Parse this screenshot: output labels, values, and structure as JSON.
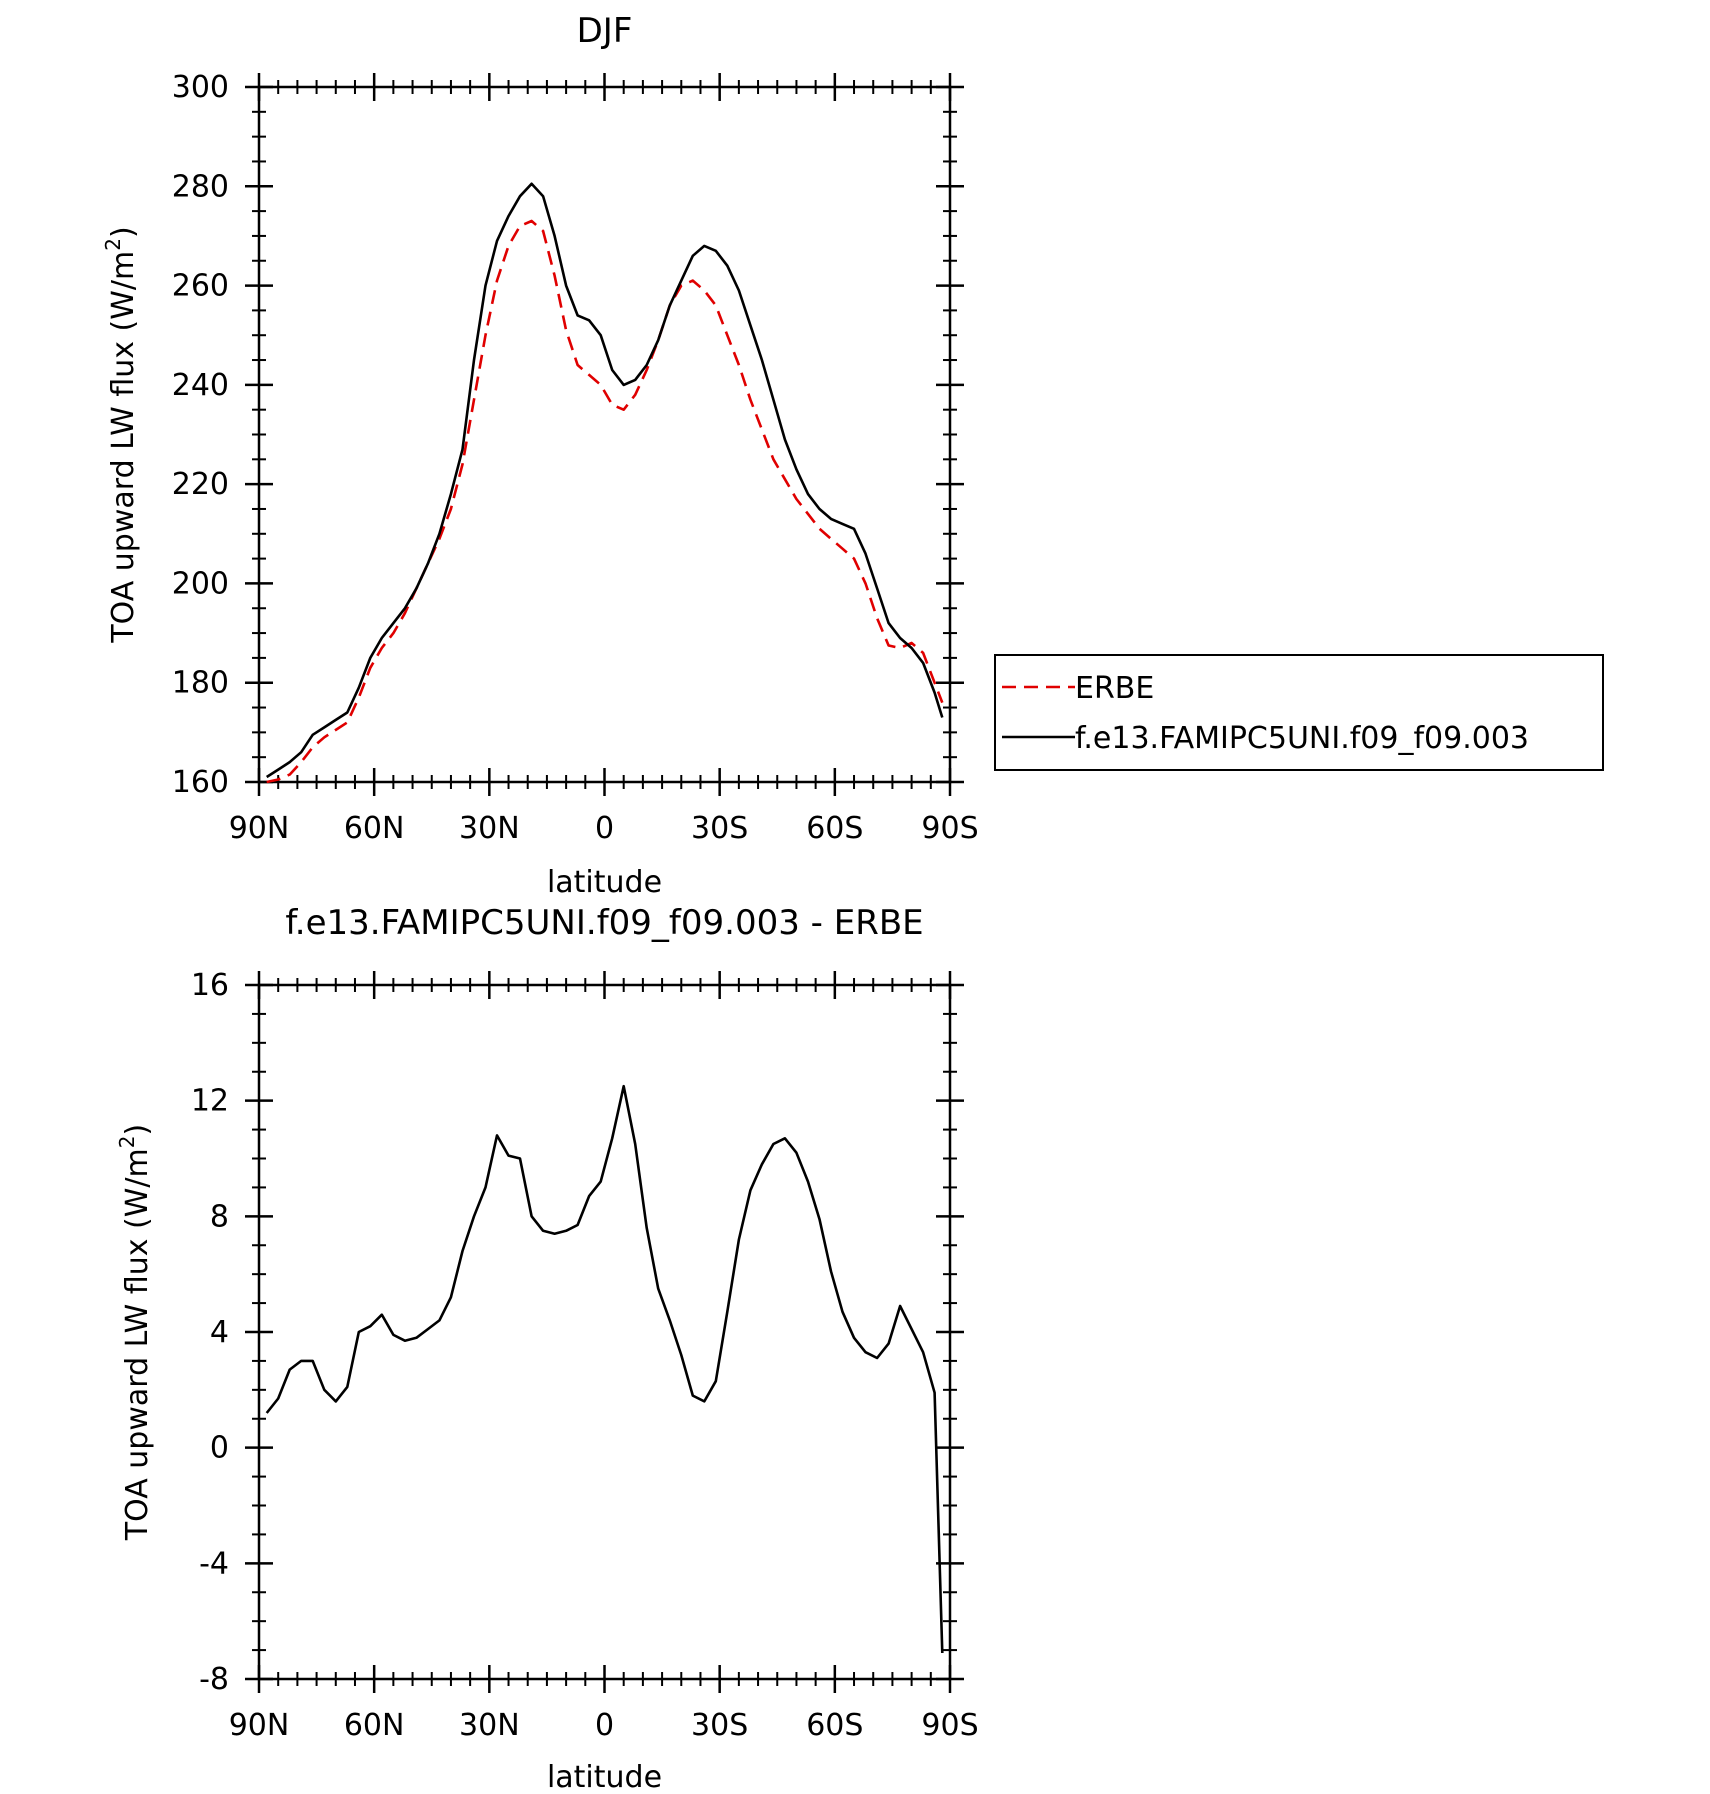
{
  "chart_data": [
    {
      "type": "line",
      "title": "DJF",
      "xlabel": "latitude",
      "ylabel": "TOA upward LW flux (W/m",
      "ylabel_sup": "2",
      "ylabel_tail": ")",
      "ylim": [
        160,
        300
      ],
      "xlim": [
        90,
        -90
      ],
      "yticks": [
        160,
        180,
        200,
        220,
        240,
        260,
        280,
        300
      ],
      "xticks": [
        {
          "value": 90,
          "label": "90N"
        },
        {
          "value": 60,
          "label": "60N"
        },
        {
          "value": 30,
          "label": "30N"
        },
        {
          "value": 0,
          "label": "0"
        },
        {
          "value": -30,
          "label": "30S"
        },
        {
          "value": -60,
          "label": "60S"
        },
        {
          "value": -90,
          "label": "90S"
        }
      ],
      "legend": {
        "position": "right",
        "entries": [
          "ERBE",
          "f.e13.FAMIPC5UNI.f09_f09.003"
        ]
      },
      "x": [
        88,
        85,
        82,
        79,
        76,
        73,
        70,
        67,
        64,
        61,
        58,
        55,
        52,
        49,
        46,
        43,
        40,
        37,
        34,
        31,
        28,
        25,
        22,
        19,
        16,
        13,
        10,
        7,
        4,
        1,
        -2,
        -5,
        -8,
        -11,
        -14,
        -17,
        -20,
        -23,
        -26,
        -29,
        -32,
        -35,
        -38,
        -41,
        -44,
        -47,
        -50,
        -53,
        -56,
        -59,
        -62,
        -65,
        -68,
        -71,
        -74,
        -77,
        -80,
        -83,
        -86,
        -88
      ],
      "series": [
        {
          "name": "ERBE",
          "color": "#e00000",
          "dash": "dashed",
          "values": [
            160,
            160.5,
            161.5,
            164,
            167,
            169,
            170.5,
            172,
            177,
            183,
            187,
            190,
            194,
            199,
            204,
            209,
            215,
            224,
            237,
            250,
            261,
            268,
            272,
            273,
            271,
            262,
            251,
            244,
            242,
            240,
            236,
            235,
            238,
            243,
            249,
            256,
            260,
            261,
            259,
            256,
            250,
            244,
            237,
            231,
            225,
            221,
            217,
            214,
            211,
            209,
            207,
            205,
            200,
            193,
            187.5,
            187,
            188,
            186,
            180,
            176
          ]
        },
        {
          "name": "f.e13.FAMIPC5UNI.f09_f09.003",
          "color": "#000000",
          "dash": "solid",
          "values": [
            161,
            162.5,
            164,
            166,
            169.5,
            171,
            172.5,
            174,
            179,
            185,
            189,
            192,
            195,
            199,
            204,
            210,
            218,
            227,
            245,
            260,
            269,
            274,
            278,
            280.5,
            278,
            270,
            260,
            254,
            253,
            250,
            243,
            240,
            241,
            244,
            249,
            256,
            261,
            266,
            268,
            267,
            264,
            259,
            252,
            245,
            237,
            229,
            223,
            218,
            215,
            213,
            212,
            211,
            206,
            199,
            192,
            189,
            187,
            184,
            178,
            173
          ]
        }
      ]
    },
    {
      "type": "line",
      "title": "f.e13.FAMIPC5UNI.f09_f09.003 - ERBE",
      "xlabel": "latitude",
      "ylabel": "TOA upward LW flux (W/m",
      "ylabel_sup": "2",
      "ylabel_tail": ")",
      "ylim": [
        -8,
        16
      ],
      "xlim": [
        90,
        -90
      ],
      "yticks": [
        -8,
        -4,
        0,
        4,
        8,
        12,
        16
      ],
      "xticks": [
        {
          "value": 90,
          "label": "90N"
        },
        {
          "value": 60,
          "label": "60N"
        },
        {
          "value": 30,
          "label": "30N"
        },
        {
          "value": 0,
          "label": "0"
        },
        {
          "value": -30,
          "label": "30S"
        },
        {
          "value": -60,
          "label": "60S"
        },
        {
          "value": -90,
          "label": "90S"
        }
      ],
      "series": [
        {
          "color": "#000000",
          "dash": "solid",
          "x": [
            88,
            85,
            82,
            79,
            76,
            73,
            70,
            67,
            64,
            61,
            58,
            55,
            52,
            49,
            46,
            43,
            40,
            37,
            34,
            31,
            28,
            25,
            22,
            19,
            16,
            13,
            10,
            7,
            4,
            1,
            -2,
            -5,
            -8,
            -11,
            -14,
            -17,
            -20,
            -23,
            -26,
            -29,
            -32,
            -35,
            -38,
            -41,
            -44,
            -47,
            -50,
            -53,
            -56,
            -59,
            -62,
            -65,
            -68,
            -71,
            -74,
            -77,
            -80,
            -83,
            -86,
            -88
          ],
          "values": [
            1.2,
            1.7,
            2.7,
            3.0,
            3.0,
            2.0,
            1.6,
            2.1,
            4.0,
            4.2,
            4.6,
            3.9,
            3.7,
            3.8,
            4.1,
            4.4,
            5.2,
            6.8,
            8.0,
            9.0,
            10.8,
            10.1,
            10.0,
            8.0,
            7.5,
            7.4,
            7.5,
            7.7,
            8.7,
            9.2,
            10.7,
            12.5,
            10.5,
            7.6,
            5.5,
            4.4,
            3.2,
            1.8,
            1.6,
            2.3,
            4.7,
            7.2,
            8.9,
            9.8,
            10.5,
            10.7,
            10.2,
            9.2,
            7.9,
            6.1,
            4.7,
            3.8,
            3.3,
            3.1,
            3.6,
            4.9,
            4.1,
            3.3,
            1.9,
            -7.1
          ]
        }
      ]
    }
  ]
}
